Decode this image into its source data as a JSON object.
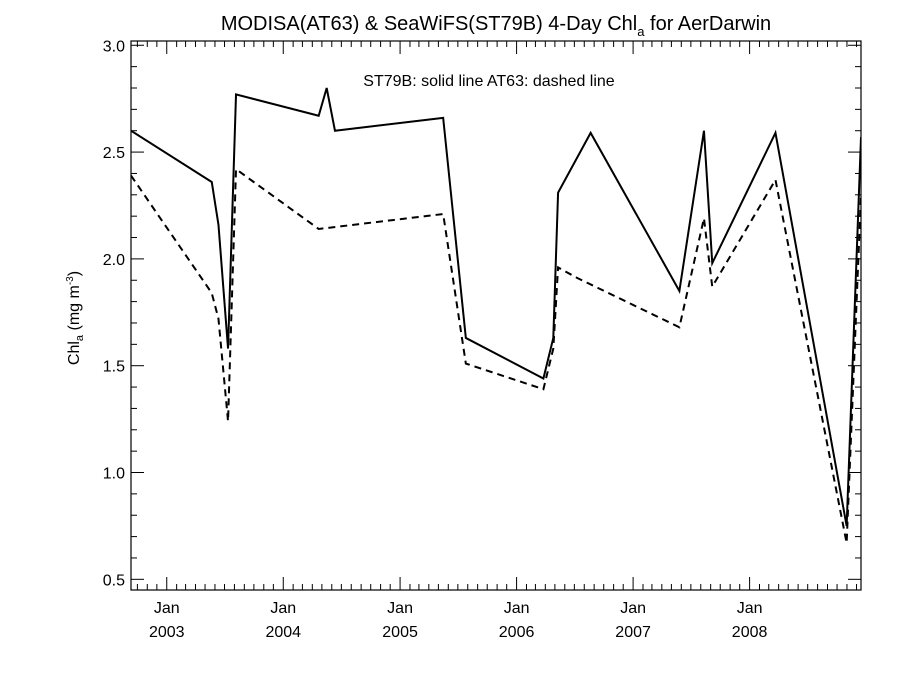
{
  "chart_data": {
    "type": "line",
    "title": {
      "prefix": "MODISA(AT63) & SeaWiFS(ST79B) 4-Day Chl",
      "subscript": "a",
      "suffix": " for AerDarwin"
    },
    "ylabel": {
      "prefix": "Chl",
      "subscript": "a",
      "mid": " (mg m",
      "superscript": "-3",
      "suffix": ")"
    },
    "annotation": "ST79B: solid line   AT63: dashed line",
    "x_axis": {
      "range": [
        "2002-09-11",
        "2008-12-15"
      ],
      "tick_labels": [
        {
          "date": "2003-01-01",
          "month": "Jan",
          "year": "2003"
        },
        {
          "date": "2004-01-01",
          "month": "Jan",
          "year": "2004"
        },
        {
          "date": "2005-01-01",
          "month": "Jan",
          "year": "2005"
        },
        {
          "date": "2006-01-01",
          "month": "Jan",
          "year": "2006"
        },
        {
          "date": "2007-01-01",
          "month": "Jan",
          "year": "2007"
        },
        {
          "date": "2008-01-01",
          "month": "Jan",
          "year": "2008"
        }
      ]
    },
    "y_axis": {
      "range": [
        0.45,
        3.02
      ],
      "ticks": [
        0.5,
        1.0,
        1.5,
        2.0,
        2.5,
        3.0
      ],
      "tick_labels": [
        "0.5",
        "1.0",
        "1.5",
        "2.0",
        "2.5",
        "3.0"
      ]
    },
    "series": [
      {
        "style": "solid",
        "points": [
          [
            "2002-09-11",
            2.6
          ],
          [
            "2003-05-22",
            2.36
          ],
          [
            "2003-06-12",
            2.16
          ],
          [
            "2003-07-12",
            1.58
          ],
          [
            "2003-08-06",
            2.77
          ],
          [
            "2004-04-21",
            2.67
          ],
          [
            "2004-05-16",
            2.8
          ],
          [
            "2004-06-11",
            2.6
          ],
          [
            "2005-05-16",
            2.66
          ],
          [
            "2005-07-26",
            1.63
          ],
          [
            "2006-03-26",
            1.44
          ],
          [
            "2006-04-26",
            1.63
          ],
          [
            "2006-05-11",
            2.31
          ],
          [
            "2006-08-21",
            2.59
          ],
          [
            "2007-05-26",
            1.85
          ],
          [
            "2007-08-11",
            2.6
          ],
          [
            "2007-09-06",
            1.98
          ],
          [
            "2008-03-22",
            2.59
          ],
          [
            "2008-10-31",
            0.75
          ],
          [
            "2008-12-15",
            2.57
          ]
        ]
      },
      {
        "style": "dashed",
        "points": [
          [
            "2002-09-11",
            2.39
          ],
          [
            "2003-05-22",
            1.84
          ],
          [
            "2003-06-12",
            1.72
          ],
          [
            "2003-07-12",
            1.24
          ],
          [
            "2003-08-06",
            2.42
          ],
          [
            "2004-04-21",
            2.14
          ],
          [
            "2005-05-16",
            2.21
          ],
          [
            "2005-07-26",
            1.51
          ],
          [
            "2006-03-26",
            1.39
          ],
          [
            "2006-04-26",
            1.58
          ],
          [
            "2006-05-11",
            1.96
          ],
          [
            "2006-07-11",
            1.91
          ],
          [
            "2007-05-26",
            1.68
          ],
          [
            "2007-08-11",
            2.19
          ],
          [
            "2007-09-06",
            1.87
          ],
          [
            "2008-03-22",
            2.37
          ],
          [
            "2008-10-31",
            0.67
          ],
          [
            "2008-12-15",
            2.3
          ]
        ]
      }
    ],
    "grid": false,
    "legend": "none"
  }
}
